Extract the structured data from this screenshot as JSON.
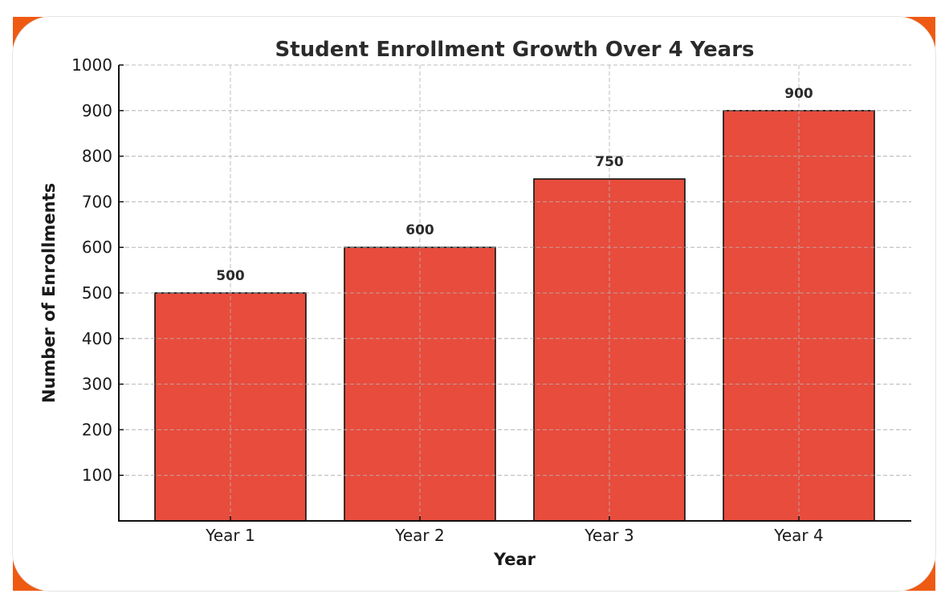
{
  "theme": {
    "accent": "#ef5a13",
    "bar_fill": "#e74c3c",
    "bar_edge": "#111111",
    "grid": "#bdbdbd"
  },
  "chart_data": {
    "type": "bar",
    "title": "Student Enrollment Growth Over 4 Years",
    "xlabel": "Year",
    "ylabel": "Number of Enrollments",
    "categories": [
      "Year 1",
      "Year 2",
      "Year 3",
      "Year 4"
    ],
    "values": [
      500,
      600,
      750,
      900
    ],
    "data_labels": [
      "500",
      "600",
      "750",
      "900"
    ],
    "ylim": [
      0,
      1000
    ],
    "yticks": [
      100,
      200,
      300,
      400,
      500,
      600,
      700,
      800,
      900,
      1000
    ],
    "grid": true,
    "grid_style": "dashed",
    "legend": null
  }
}
